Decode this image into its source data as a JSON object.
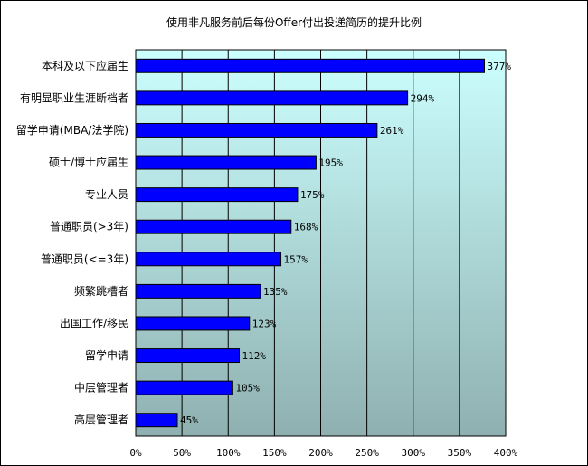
{
  "chart_data": {
    "type": "bar",
    "orientation": "horizontal",
    "title": "使用非凡服务前后每份Offer付出投递简历的提升比例",
    "categories": [
      "本科及以下应届生",
      "有明显职业生涯断档者",
      "留学申请(MBA/法学院)",
      "硕士/博士应届生",
      "专业人员",
      "普通职员(>3年)",
      "普通职员(<=3年)",
      "频繁跳槽者",
      "出国工作/移民",
      "留学申请",
      "中层管理者",
      "高层管理者"
    ],
    "values": [
      377,
      294,
      261,
      195,
      175,
      168,
      157,
      135,
      123,
      112,
      105,
      45
    ],
    "data_labels": [
      "377%",
      "294%",
      "261%",
      "195%",
      "175%",
      "168%",
      "157%",
      "135%",
      "123%",
      "112%",
      "105%",
      "45%"
    ],
    "xlim": [
      0,
      400
    ],
    "xticks": [
      0,
      50,
      100,
      150,
      200,
      250,
      300,
      350,
      400
    ],
    "xtick_labels": [
      "0%",
      "50%",
      "100%",
      "150%",
      "200%",
      "250%",
      "300%",
      "350%",
      "400%"
    ],
    "grid": true,
    "legend": "none",
    "colors": {
      "bar_fill": "#0000ff",
      "bar_edge": "#000000",
      "plot_bg_top": "#ccffff",
      "plot_bg_bottom": "#8fb0b0",
      "grid": "#000000"
    }
  }
}
